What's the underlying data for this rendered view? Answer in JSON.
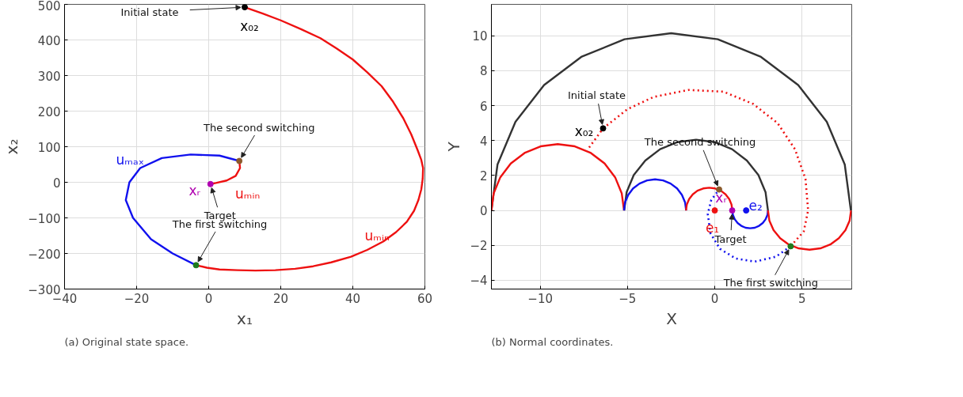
{
  "chart_data": [
    {
      "type": "line",
      "xlabel": "x₁",
      "ylabel": "x₂",
      "xlim": [
        -40,
        60
      ],
      "ylim": [
        -300,
        500
      ],
      "xticks": [
        -40,
        -20,
        0,
        20,
        40,
        60
      ],
      "yticks": [
        -300,
        -200,
        -100,
        0,
        100,
        200,
        300,
        400,
        500
      ],
      "grid": true,
      "legend": false,
      "marker": "none",
      "line_style": "solid",
      "series": [
        {
          "name": "uₘᵢₙ",
          "color": "#ee1111",
          "x": [
            10,
            15,
            20,
            25.5,
            31,
            35.5,
            40,
            44,
            48,
            51.2,
            54,
            56.2,
            58,
            59,
            59.5,
            59.4,
            59,
            58.2,
            57,
            55,
            52,
            48.5,
            44,
            39.5,
            34,
            29,
            24,
            18.5,
            13,
            8,
            3,
            -0.5,
            -3.5
          ],
          "values": [
            492,
            474,
            455,
            431,
            405,
            376,
            345,
            309,
            270,
            226,
            180,
            135,
            90,
            63,
            40,
            10,
            -20,
            -50,
            -80,
            -111,
            -140,
            -166,
            -190,
            -209,
            -225,
            -236,
            -243,
            -247,
            -248,
            -247,
            -245,
            -240,
            -233
          ]
        },
        {
          "name": "uₘₐₓ",
          "color": "#1111ee",
          "x": [
            -3.5,
            -10,
            -16,
            -21,
            -23,
            -22,
            -19,
            -13,
            -5,
            3,
            8.5
          ],
          "values": [
            -233,
            -200,
            -160,
            -100,
            -50,
            0,
            40,
            68,
            78,
            75,
            60
          ]
        },
        {
          "name": "uₘᵢₙ",
          "color": "#ee1111",
          "x": [
            8.5,
            8.7,
            7.5,
            5,
            2,
            0.5
          ],
          "values": [
            60,
            40,
            18,
            5,
            -2,
            -5
          ]
        },
        {
          "name": "x₀₂",
          "type": "scatter",
          "marker": "circle",
          "color": "#000000",
          "x": [
            10
          ],
          "values": [
            492
          ]
        },
        {
          "type": "scatter",
          "marker": "circle",
          "color": "#1e7a1e",
          "x": [
            -3.5
          ],
          "values": [
            -233
          ]
        },
        {
          "type": "scatter",
          "marker": "circle",
          "color": "#8b5a2b",
          "x": [
            8.5
          ],
          "values": [
            60
          ]
        },
        {
          "name": "xᵣ",
          "type": "scatter",
          "marker": "circle",
          "color": "#b000b0",
          "x": [
            0.5
          ],
          "values": [
            -5
          ]
        }
      ],
      "annotations": [
        {
          "text": "Initial state",
          "x": 10,
          "y": 492
        },
        {
          "text": "The second switching",
          "x": 8.5,
          "y": 60
        },
        {
          "text": "Target",
          "x": 0.5,
          "y": -5
        },
        {
          "text": "The first switching",
          "x": -3.5,
          "y": -233
        },
        "(a) Original state space."
      ]
    },
    {
      "type": "line",
      "xlabel": "X",
      "ylabel": "Y",
      "xlim": [
        -12.8,
        7.85
      ],
      "ylim": [
        -4.5,
        11.8
      ],
      "xticks": [
        -10,
        -5,
        0,
        5
      ],
      "yticks": [
        -4,
        -2,
        0,
        2,
        4,
        6,
        8,
        10
      ],
      "grid": true,
      "legend": false,
      "marker": "none",
      "line_style": "solid",
      "series": [
        {
          "color": "#333333",
          "x": [
            -12.8,
            -12.45,
            -11.42,
            -9.78,
            -7.65,
            -5.17,
            -2.5,
            0.17,
            2.65,
            4.78,
            6.42,
            7.45,
            7.8
          ],
          "values": [
            0,
            2.63,
            5.08,
            7.18,
            8.79,
            9.8,
            10.15,
            9.8,
            8.79,
            7.18,
            5.08,
            2.63,
            0
          ]
        },
        {
          "color": "#ee1111",
          "x": [
            -12.8,
            -12.67,
            -12.29,
            -11.69,
            -10.9,
            -9.98,
            -9,
            -8.02,
            -7.1,
            -6.31,
            -5.71,
            -5.33,
            -5.2
          ],
          "values": [
            0,
            0.98,
            1.9,
            2.69,
            3.29,
            3.67,
            3.8,
            3.67,
            3.29,
            2.69,
            1.9,
            0.98,
            0
          ]
        },
        {
          "color": "#333333",
          "x": [
            -5.19,
            -5.05,
            -4.64,
            -3.98,
            -3.13,
            -2.14,
            -1.07,
            0,
            0.99,
            1.84,
            2.5,
            2.91,
            3.05
          ],
          "values": [
            0,
            1.05,
            2.03,
            2.86,
            3.51,
            3.91,
            4.05,
            3.91,
            3.51,
            2.86,
            2.03,
            1.05,
            0
          ]
        },
        {
          "color": "#1111ee",
          "x": [
            -5.2,
            -5.14,
            -4.96,
            -4.68,
            -4.31,
            -3.88,
            -3.42,
            -2.96,
            -2.53,
            -2.16,
            -1.88,
            -1.7,
            -1.64
          ],
          "values": [
            0,
            0.46,
            0.89,
            1.26,
            1.54,
            1.72,
            1.78,
            1.72,
            1.54,
            1.26,
            0.89,
            0.46,
            0
          ]
        },
        {
          "color": "#ee1111",
          "x": [
            -1.65,
            -1.6,
            -1.47,
            -1.26,
            -0.99,
            -0.66,
            -0.32,
            0.02,
            0.35,
            0.62,
            0.83,
            0.96,
            1.01
          ],
          "values": [
            0,
            0.34,
            0.65,
            0.92,
            1.13,
            1.26,
            1.3,
            1.26,
            1.13,
            0.92,
            0.65,
            0.34,
            0
          ]
        },
        {
          "color": "#1111ee",
          "x": [
            1.01,
            1.04,
            1.15,
            1.31,
            1.52,
            1.77,
            2.03,
            2.29,
            2.54,
            2.75,
            2.91,
            3.02,
            3.05
          ],
          "values": [
            0,
            -0.26,
            -0.51,
            -0.72,
            -0.88,
            -0.99,
            -1.02,
            -0.99,
            -0.88,
            -0.72,
            -0.51,
            -0.26,
            0
          ]
        },
        {
          "color": "#ee1111",
          "x": [
            3.05,
            3.13,
            3.37,
            3.75,
            4.24,
            4.81,
            5.43,
            6.05,
            6.62,
            7.11,
            7.49,
            7.73,
            7.81
          ],
          "values": [
            0,
            -0.58,
            -1.13,
            -1.59,
            -1.95,
            -2.17,
            -2.25,
            -2.17,
            -1.95,
            -1.59,
            -1.13,
            -0.58,
            0
          ]
        },
        {
          "color": "#ee1111",
          "line_style": "dotted",
          "x": [
            -7.2,
            -6.4,
            -5,
            -3.5,
            -1.5,
            0.5,
            2.2,
            3.6,
            4.6,
            5.2,
            5.35,
            5.1,
            4.35
          ],
          "values": [
            3.6,
            4.7,
            5.8,
            6.5,
            6.9,
            6.8,
            6.1,
            5,
            3.5,
            1.8,
            0,
            -1.2,
            -2.05
          ]
        },
        {
          "color": "#1111ee",
          "line_style": "dotted",
          "x": [
            4.35,
            3.5,
            2.3,
            1.2,
            0.3,
            -0.25,
            -0.4,
            -0.2,
            0.25
          ],
          "values": [
            -2.05,
            -2.65,
            -2.93,
            -2.75,
            -2.2,
            -1.3,
            -0.2,
            0.6,
            1.2
          ]
        },
        {
          "name": "x₀₂",
          "type": "scatter",
          "marker": "circle",
          "color": "#000000",
          "x": [
            -6.4
          ],
          "values": [
            4.7
          ]
        },
        {
          "type": "scatter",
          "marker": "circle",
          "color": "#8b5a2b",
          "x": [
            0.25
          ],
          "values": [
            1.2
          ]
        },
        {
          "name": "xᵣ",
          "type": "scatter",
          "marker": "circle",
          "color": "#b000b0",
          "x": [
            1.0
          ],
          "values": [
            0
          ]
        },
        {
          "name": "e₁",
          "type": "scatter",
          "marker": "circle",
          "color": "#ee1111",
          "x": [
            0
          ],
          "values": [
            0
          ]
        },
        {
          "name": "e₂",
          "type": "scatter",
          "marker": "circle",
          "color": "#1111ee",
          "x": [
            1.8
          ],
          "values": [
            0
          ]
        },
        {
          "type": "scatter",
          "marker": "circle",
          "color": "#1e7a1e",
          "x": [
            4.35
          ],
          "values": [
            -2.05
          ]
        }
      ],
      "annotations": [
        {
          "text": "Initial state",
          "x": -6.4,
          "y": 4.7
        },
        {
          "text": "The second switching",
          "x": 0.25,
          "y": 1.2
        },
        {
          "text": "Target",
          "x": 1.0,
          "y": 0
        },
        {
          "text": "The first switching",
          "x": 4.35,
          "y": -2.05
        },
        "(b) Normal coordinates."
      ]
    }
  ]
}
